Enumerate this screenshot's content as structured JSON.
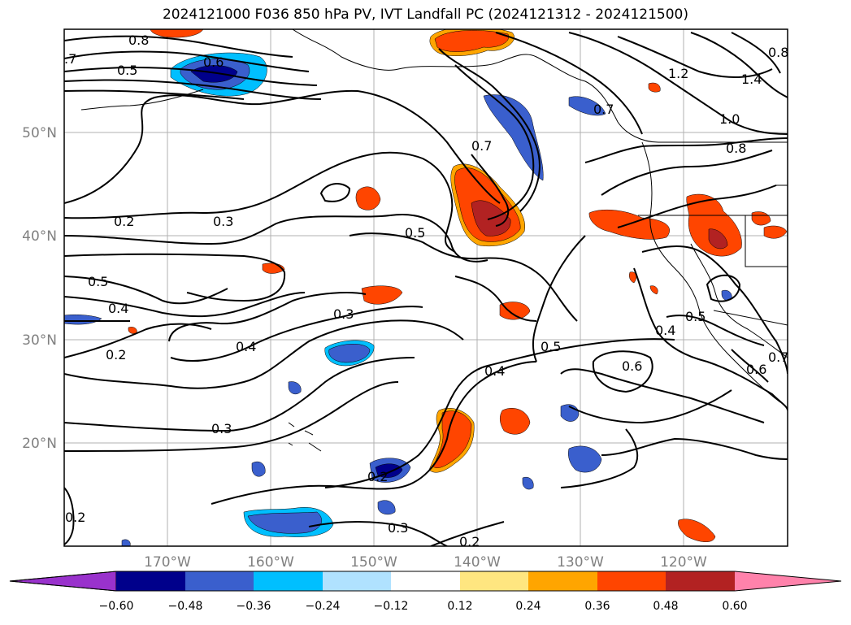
{
  "title": "2024121000 F036 850 hPa PV, IVT Landfall PC (2024121312 - 2024121500)",
  "lat_labels": [
    "50°N",
    "40°N",
    "30°N",
    "20°N"
  ],
  "lon_labels": [
    "170°W",
    "160°W",
    "150°W",
    "140°W",
    "130°W",
    "120°W"
  ],
  "contour_labels": [
    "0.8",
    ".7",
    "0.5",
    "0.6",
    "0.2",
    "0.3",
    "0.5",
    "0.4",
    "0.2",
    "0.7",
    "0.5",
    "0.3",
    "0.4",
    "0.4",
    "0.5",
    "0.6",
    "0.3",
    "0.2",
    "0.3",
    "0.2",
    "1.2",
    "1.4",
    "1.0",
    "0.8",
    "0.4",
    "0.5",
    "0.6",
    "0.7",
    "0.7",
    "0.8"
  ],
  "colorbar": {
    "ticks": [
      "−0.60",
      "−0.48",
      "−0.36",
      "−0.24",
      "−0.12",
      "0.12",
      "0.24",
      "0.36",
      "0.48",
      "0.60"
    ],
    "colors": [
      "#9932cc",
      "#00008b",
      "#3a5fcd",
      "#00bfff",
      "#b0e2ff",
      "#ffffff",
      "#ffe680",
      "#ffa500",
      "#ff4500",
      "#b22222",
      "#ff82ab"
    ]
  }
}
